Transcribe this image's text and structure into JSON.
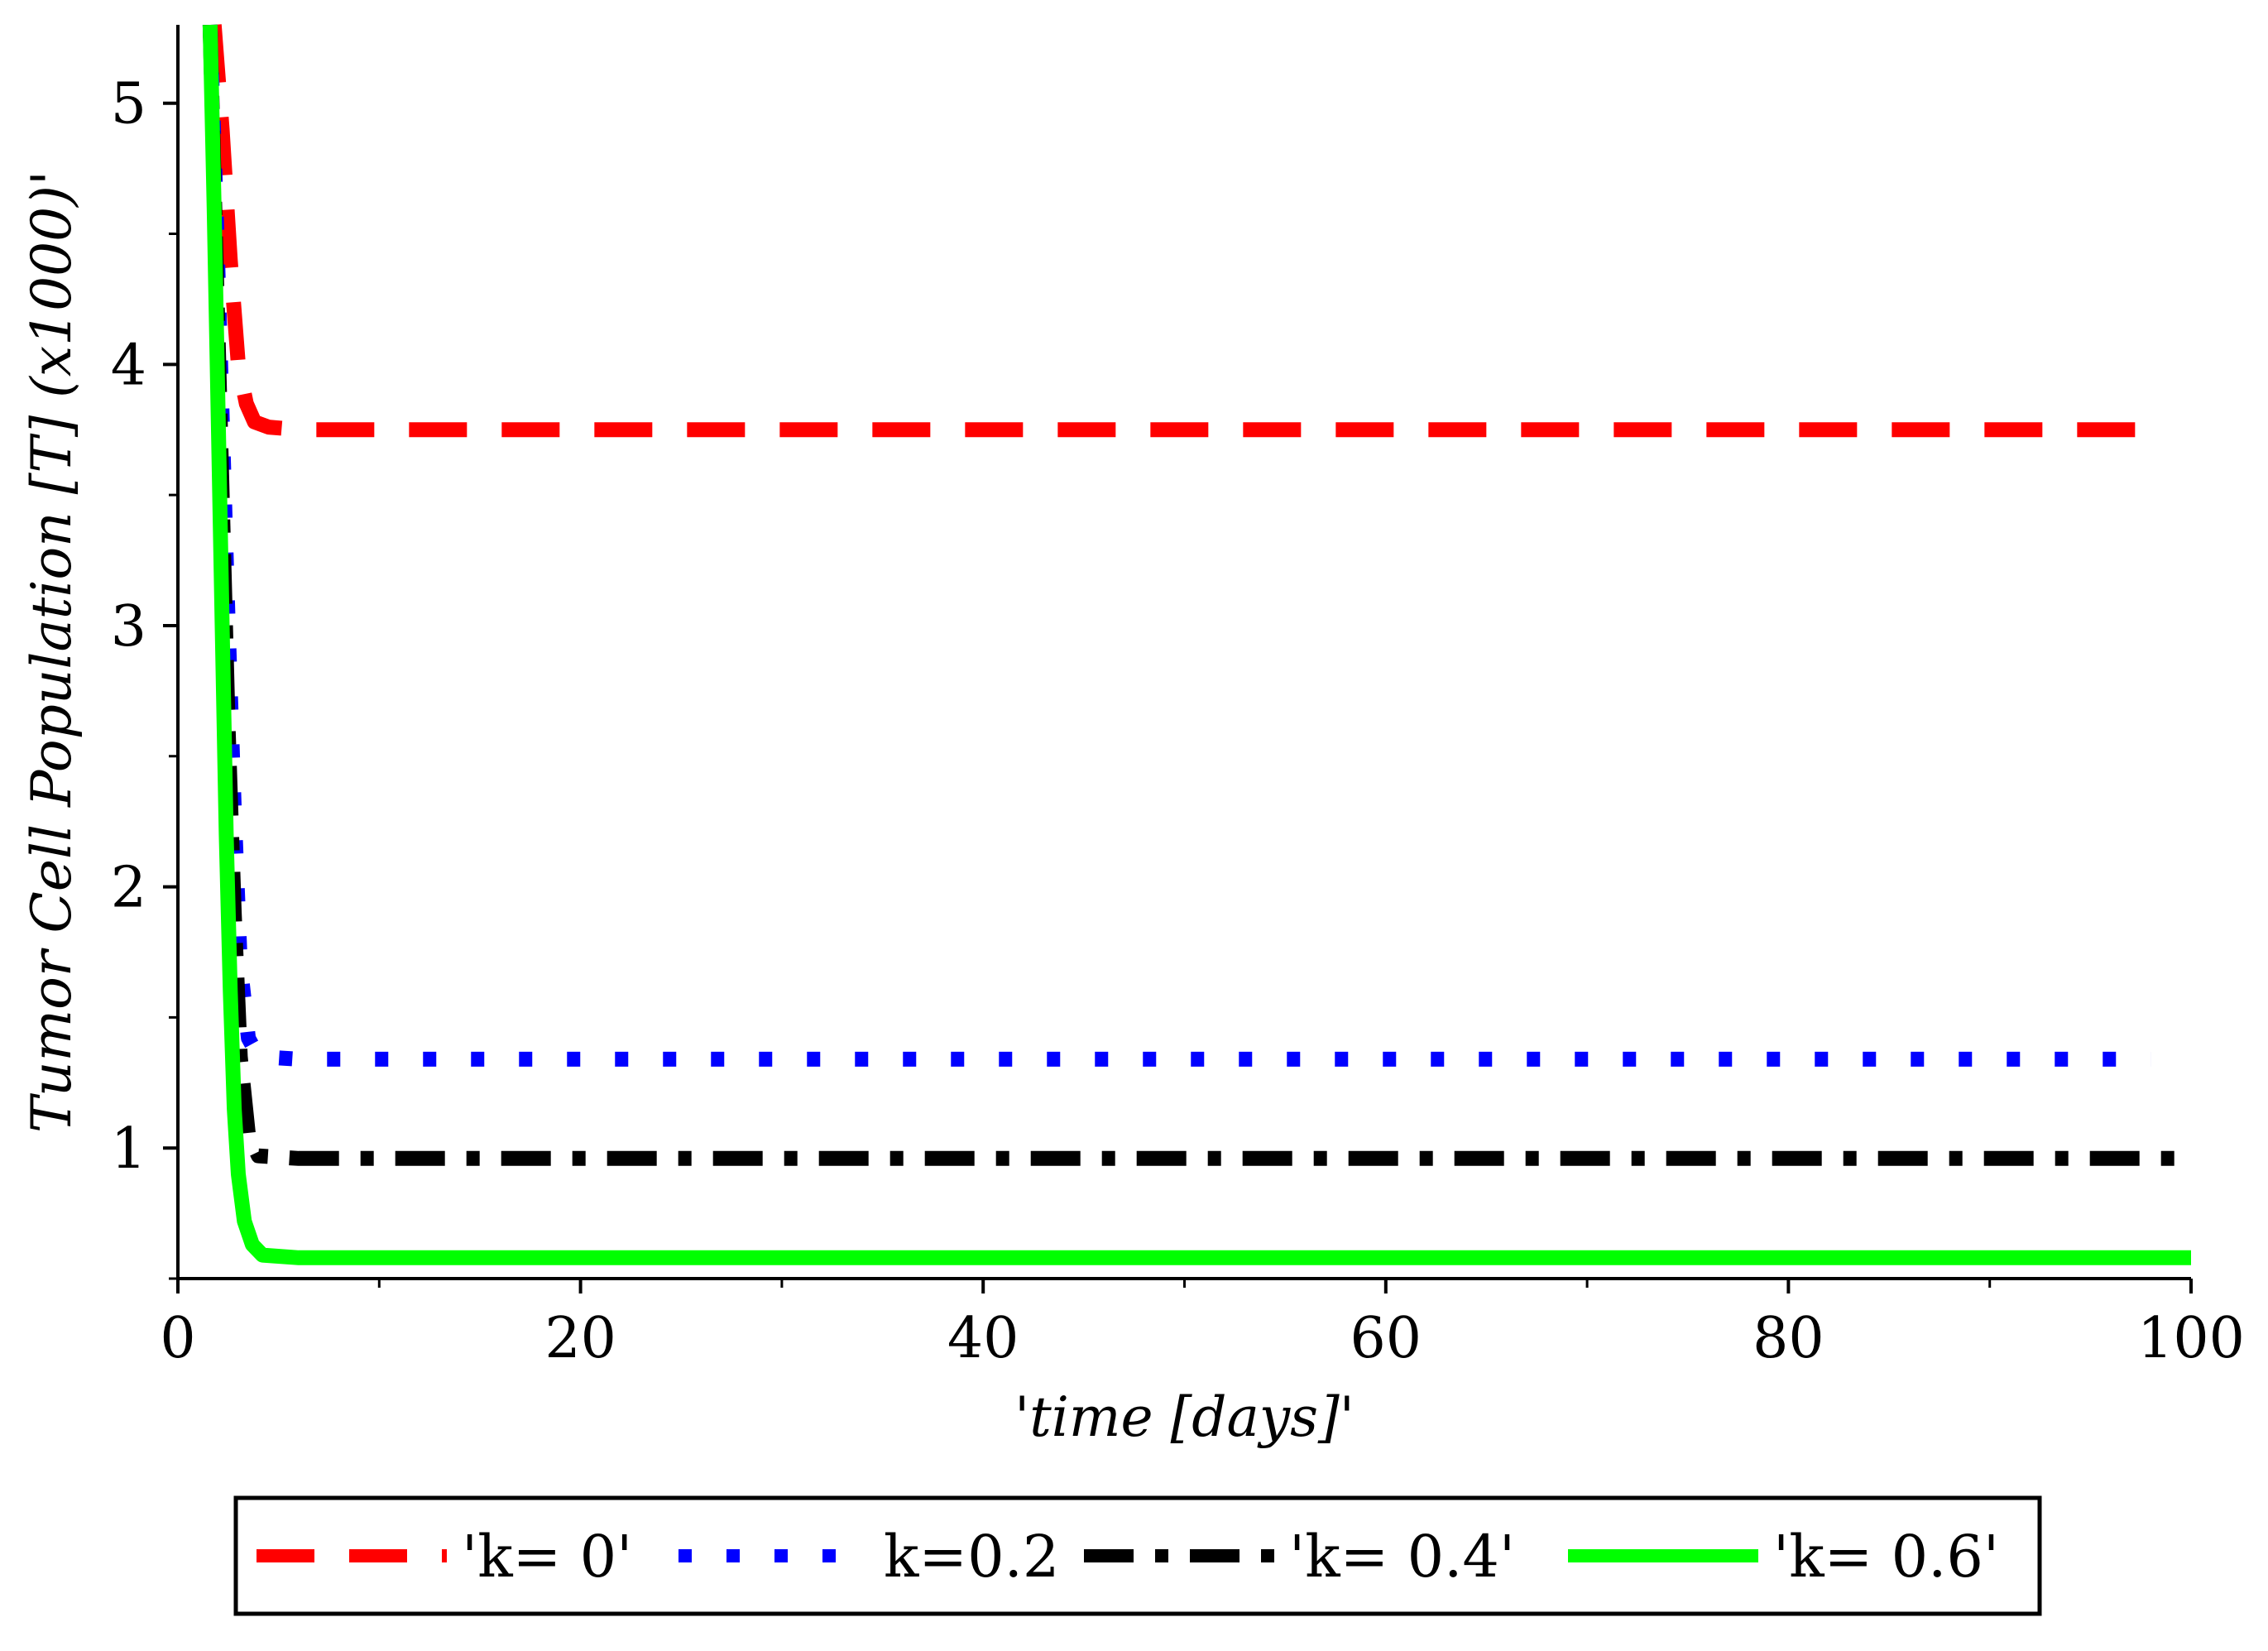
{
  "chart_data": {
    "type": "line",
    "title": "",
    "xlabel": "'time [days]'",
    "ylabel": "Tumor Cell Population [T] (x1000)'",
    "xlim": [
      0,
      100
    ],
    "ylim": [
      0.5,
      5.3
    ],
    "x_ticks": [
      {
        "value": 0,
        "label": "0"
      },
      {
        "value": 20,
        "label": "20"
      },
      {
        "value": 40,
        "label": "40"
      },
      {
        "value": 60,
        "label": "60"
      },
      {
        "value": 80,
        "label": "80"
      },
      {
        "value": 100,
        "label": "100"
      }
    ],
    "x_minor_ticks": [
      10,
      30,
      50,
      70,
      90
    ],
    "y_ticks": [
      {
        "value": 1,
        "label": "1"
      },
      {
        "value": 2,
        "label": "2"
      },
      {
        "value": 3,
        "label": "3"
      },
      {
        "value": 4,
        "label": "4"
      },
      {
        "value": 5,
        "label": "5"
      }
    ],
    "y_minor_ticks": [
      0.5,
      1.5,
      2.5,
      3.5,
      4.5
    ],
    "grid": false,
    "legend_position": "bottom",
    "series": [
      {
        "name": "'k= 0'",
        "color": "#ff0000",
        "style": "dash",
        "x": [
          1.8,
          2.2,
          2.6,
          3.0,
          3.4,
          3.8,
          4.5,
          6,
          10,
          20,
          40,
          60,
          80,
          98
        ],
        "y": [
          5.3,
          4.9,
          4.4,
          4.0,
          3.85,
          3.78,
          3.76,
          3.75,
          3.75,
          3.75,
          3.75,
          3.75,
          3.75,
          3.75
        ]
      },
      {
        "name": "k=0.2",
        "color": "#0000ff",
        "style": "dot",
        "x": [
          1.6,
          1.9,
          2.2,
          2.5,
          2.8,
          3.1,
          3.5,
          4.0,
          6,
          10,
          20,
          40,
          60,
          80,
          98
        ],
        "y": [
          5.3,
          4.6,
          3.8,
          3.0,
          2.3,
          1.7,
          1.42,
          1.35,
          1.34,
          1.34,
          1.34,
          1.34,
          1.34,
          1.34,
          1.34
        ]
      },
      {
        "name": "'k= 0.4'",
        "color": "#000000",
        "style": "dashdot",
        "x": [
          1.6,
          1.9,
          2.2,
          2.5,
          2.8,
          3.1,
          3.5,
          4.0,
          6,
          10,
          20,
          40,
          60,
          80,
          100
        ],
        "y": [
          5.3,
          4.4,
          3.5,
          2.6,
          1.9,
          1.35,
          1.05,
          0.97,
          0.96,
          0.96,
          0.96,
          0.96,
          0.96,
          0.96,
          0.96
        ]
      },
      {
        "name": "'k= 0.6'",
        "color": "#00ff00",
        "style": "solid",
        "x": [
          1.6,
          1.8,
          2.0,
          2.2,
          2.4,
          2.6,
          2.8,
          3.0,
          3.3,
          3.7,
          4.2,
          6,
          10,
          20,
          40,
          60,
          80,
          100
        ],
        "y": [
          5.3,
          4.6,
          3.8,
          3.0,
          2.2,
          1.6,
          1.15,
          0.9,
          0.72,
          0.63,
          0.59,
          0.58,
          0.58,
          0.58,
          0.58,
          0.58,
          0.58,
          0.58
        ]
      }
    ]
  }
}
